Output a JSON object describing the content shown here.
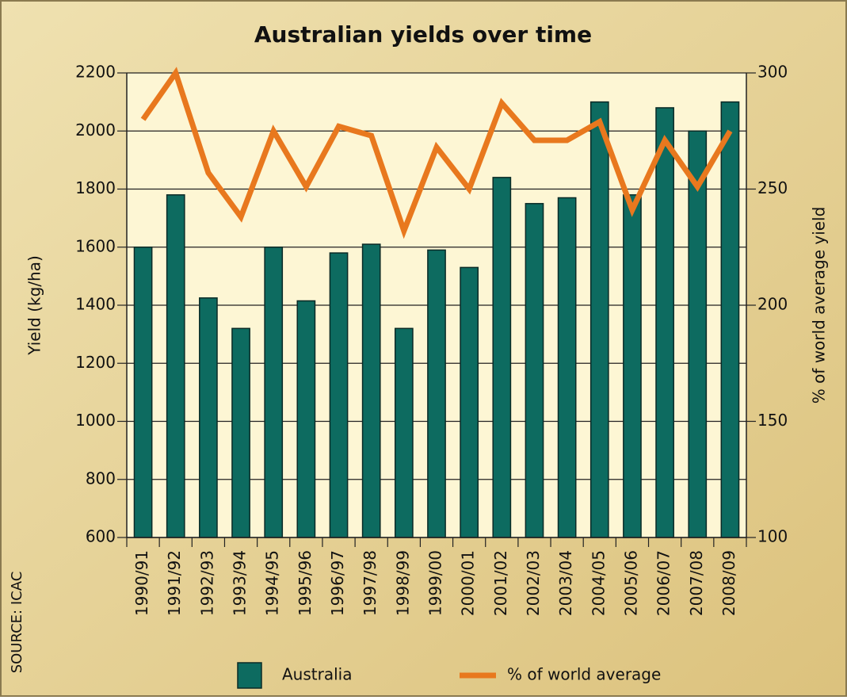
{
  "chart_data": {
    "type": "bar_line",
    "title": "Australian yields over time",
    "y_label": "Yield (kg/ha)",
    "y2_label": "% of world average yield",
    "source": "SOURCE: ICAC",
    "categories": [
      "1990/91",
      "1991/92",
      "1992/93",
      "1993/94",
      "1994/95",
      "1995/96",
      "1996/97",
      "1997/98",
      "1998/99",
      "1999/00",
      "2000/01",
      "2001/02",
      "2002/03",
      "2003/04",
      "2004/05",
      "2005/06",
      "2006/07",
      "2007/08",
      "2008/09"
    ],
    "series": [
      {
        "name": "Australia",
        "type": "bar",
        "color": "#0d6b60",
        "values": [
          1600,
          1780,
          1425,
          1320,
          1600,
          1415,
          1580,
          1610,
          1320,
          1590,
          1530,
          1840,
          1750,
          1770,
          2100,
          1780,
          2080,
          2000,
          2100
        ]
      },
      {
        "name": "% of world average",
        "type": "line",
        "axis": "y2",
        "color": "#e8781e",
        "values": [
          280,
          300,
          257,
          238,
          275,
          251,
          277,
          273,
          232,
          268,
          250,
          287,
          271,
          271,
          279,
          241,
          271,
          251,
          275
        ]
      }
    ],
    "ylim": [
      600,
      2200
    ],
    "yticks": [
      600,
      800,
      1000,
      1200,
      1400,
      1600,
      1800,
      2000,
      2200
    ],
    "y2lim": [
      100,
      300
    ],
    "y2ticks": [
      100,
      150,
      200,
      250,
      300
    ],
    "grid": true,
    "legend": "bottom"
  }
}
